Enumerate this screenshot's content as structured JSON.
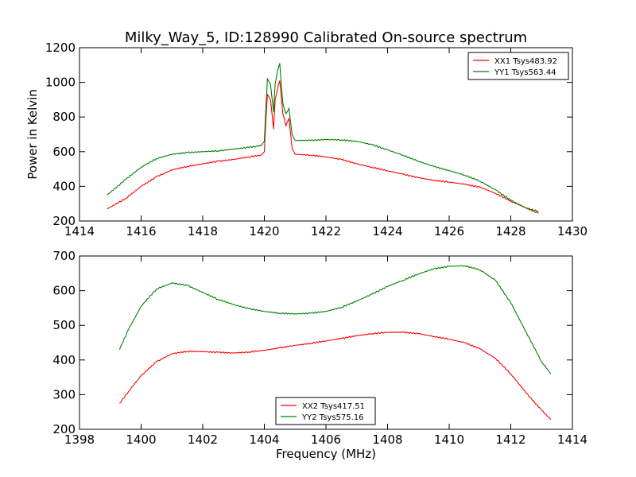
{
  "chart_data": [
    {
      "type": "line",
      "title": "Milky_Way_5, ID:128990 Calibrated On-source spectrum",
      "xlabel": "",
      "ylabel": "Power in Kelvin",
      "xlim": [
        1414,
        1430
      ],
      "ylim": [
        200,
        1200
      ],
      "xticks": [
        "1414",
        "1416",
        "1418",
        "1420",
        "1422",
        "1424",
        "1426",
        "1428",
        "1430"
      ],
      "yticks": [
        "200",
        "400",
        "600",
        "800",
        "1000",
        "1200"
      ],
      "grid": false,
      "legend_position": "top-right",
      "series": [
        {
          "name": "XX1 Tsys483.92",
          "color": "#ff0000",
          "x": [
            1414.9,
            1415.5,
            1416.0,
            1416.5,
            1417.0,
            1417.5,
            1418.0,
            1418.5,
            1419.0,
            1419.5,
            1419.9,
            1420.0,
            1420.05,
            1420.1,
            1420.2,
            1420.3,
            1420.35,
            1420.45,
            1420.5,
            1420.6,
            1420.7,
            1420.8,
            1420.9,
            1421.0,
            1421.5,
            1422.0,
            1422.5,
            1423.0,
            1423.5,
            1424.0,
            1424.5,
            1425.0,
            1425.5,
            1426.0,
            1426.5,
            1427.0,
            1427.5,
            1428.0,
            1428.5,
            1428.9
          ],
          "y": [
            270,
            330,
            400,
            455,
            495,
            515,
            530,
            545,
            555,
            570,
            580,
            600,
            780,
            930,
            900,
            730,
            900,
            980,
            1010,
            820,
            750,
            790,
            620,
            585,
            580,
            570,
            555,
            530,
            510,
            490,
            470,
            450,
            435,
            425,
            412,
            395,
            360,
            315,
            275,
            245
          ]
        },
        {
          "name": "YY1 Tsys563.44",
          "color": "#008000",
          "x": [
            1414.9,
            1415.5,
            1416.0,
            1416.5,
            1417.0,
            1417.5,
            1418.0,
            1418.5,
            1419.0,
            1419.5,
            1419.9,
            1420.0,
            1420.05,
            1420.1,
            1420.2,
            1420.3,
            1420.35,
            1420.45,
            1420.5,
            1420.6,
            1420.7,
            1420.8,
            1420.9,
            1421.0,
            1421.5,
            1422.0,
            1422.5,
            1423.0,
            1423.5,
            1424.0,
            1424.5,
            1425.0,
            1425.5,
            1426.0,
            1426.5,
            1427.0,
            1427.5,
            1428.0,
            1428.5,
            1428.9
          ],
          "y": [
            350,
            440,
            510,
            560,
            585,
            595,
            600,
            605,
            615,
            625,
            635,
            660,
            850,
            1020,
            990,
            830,
            990,
            1080,
            1110,
            880,
            820,
            850,
            700,
            665,
            665,
            670,
            668,
            660,
            640,
            610,
            580,
            545,
            515,
            490,
            465,
            430,
            380,
            320,
            275,
            255
          ]
        }
      ]
    },
    {
      "type": "line",
      "title": "",
      "xlabel": "Frequency (MHz)",
      "ylabel": "",
      "xlim": [
        1398,
        1414
      ],
      "ylim": [
        200,
        700
      ],
      "xticks": [
        "1398",
        "1400",
        "1402",
        "1404",
        "1406",
        "1408",
        "1410",
        "1412",
        "1414"
      ],
      "yticks": [
        "200",
        "300",
        "400",
        "500",
        "600",
        "700"
      ],
      "grid": false,
      "legend_position": "bottom-center",
      "series": [
        {
          "name": "XX2 Tsys417.51",
          "color": "#ff0000",
          "x": [
            1399.3,
            1399.6,
            1400.0,
            1400.5,
            1401.0,
            1401.5,
            1402.0,
            1402.5,
            1403.0,
            1403.5,
            1404.0,
            1404.5,
            1405.0,
            1405.5,
            1406.0,
            1406.5,
            1407.0,
            1407.5,
            1408.0,
            1408.5,
            1409.0,
            1409.5,
            1410.0,
            1410.5,
            1411.0,
            1411.5,
            1412.0,
            1412.5,
            1413.0,
            1413.3
          ],
          "y": [
            275,
            310,
            355,
            395,
            418,
            425,
            424,
            422,
            420,
            423,
            428,
            435,
            442,
            448,
            455,
            462,
            470,
            476,
            480,
            480,
            476,
            468,
            460,
            450,
            432,
            405,
            360,
            305,
            255,
            228
          ]
        },
        {
          "name": "YY2 Tsys575.16",
          "color": "#008000",
          "x": [
            1399.3,
            1399.6,
            1400.0,
            1400.5,
            1401.0,
            1401.5,
            1402.0,
            1402.5,
            1403.0,
            1403.5,
            1404.0,
            1404.5,
            1405.0,
            1405.5,
            1406.0,
            1406.5,
            1407.0,
            1407.5,
            1408.0,
            1408.5,
            1409.0,
            1409.5,
            1410.0,
            1410.5,
            1411.0,
            1411.5,
            1412.0,
            1412.5,
            1413.0,
            1413.3
          ],
          "y": [
            430,
            490,
            555,
            605,
            622,
            615,
            595,
            575,
            560,
            548,
            540,
            535,
            533,
            535,
            540,
            552,
            570,
            590,
            612,
            630,
            648,
            663,
            670,
            672,
            660,
            630,
            565,
            480,
            395,
            360
          ]
        }
      ]
    }
  ]
}
